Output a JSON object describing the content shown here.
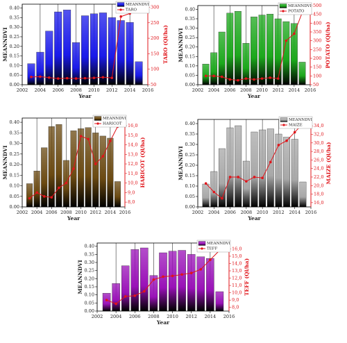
{
  "chart_data": [
    {
      "type": "bar",
      "x": [
        2003,
        2004,
        2005,
        2006,
        2007,
        2008,
        2009,
        2010,
        2011,
        2012,
        2013,
        2014,
        2015
      ],
      "xlabel": "Year",
      "ylabel": "MEANNDVI",
      "y2label": "TARO (Ql/ha)",
      "series": [
        {
          "name": "MEANNDVI",
          "color": "#1a1aea",
          "values": [
            0.11,
            0.17,
            0.28,
            0.38,
            0.39,
            0.22,
            0.36,
            0.37,
            0.375,
            0.35,
            0.335,
            0.325,
            0.12
          ]
        },
        {
          "name": "TARO",
          "color": "#e0141a",
          "axis": "y2",
          "values": [
            75,
            76,
            73,
            70,
            71,
            70,
            71,
            72,
            74,
            72,
            270,
            280,
            295
          ]
        }
      ],
      "xlim": [
        2002,
        2016
      ],
      "xticks": [
        2002,
        2004,
        2006,
        2008,
        2010,
        2012,
        2014,
        2016
      ],
      "ylim": [
        0,
        0.42
      ],
      "yticks": [
        {
          "value": 0,
          "label": "0.00"
        },
        {
          "value": 0.05,
          "label": "0.05"
        },
        {
          "value": 0.1,
          "label": "0.10"
        },
        {
          "value": 0.15,
          "label": "0.15"
        },
        {
          "value": 0.2,
          "label": "0.20"
        },
        {
          "value": 0.25,
          "label": "0.25"
        },
        {
          "value": 0.3,
          "label": "0.30"
        },
        {
          "value": 0.35,
          "label": "0.35"
        },
        {
          "value": 0.4,
          "label": "0.40"
        }
      ],
      "y2lim": [
        50,
        310
      ],
      "y2ticks": [
        50,
        100,
        150,
        200,
        250,
        300
      ],
      "grid": "x"
    },
    {
      "type": "bar",
      "x": [
        2003,
        2004,
        2005,
        2006,
        2007,
        2008,
        2009,
        2010,
        2011,
        2012,
        2013,
        2014,
        2015
      ],
      "xlabel": "Year",
      "ylabel": "MEANNDVI",
      "y2label": "POTATO (Ql/ha)",
      "series": [
        {
          "name": "MEANNDVI",
          "color": "#1ca81c",
          "values": [
            0.11,
            0.17,
            0.28,
            0.38,
            0.39,
            0.22,
            0.36,
            0.37,
            0.375,
            0.35,
            0.335,
            0.325,
            0.12
          ]
        },
        {
          "name": "POTATO",
          "color": "#e0141a",
          "axis": "y2",
          "values": [
            100,
            100,
            95,
            80,
            75,
            85,
            80,
            85,
            90,
            85,
            300,
            340,
            460
          ]
        }
      ],
      "xlim": [
        2002,
        2016
      ],
      "xticks": [
        2002,
        2004,
        2006,
        2008,
        2010,
        2012,
        2014,
        2016
      ],
      "ylim": [
        0,
        0.42
      ],
      "yticks": [
        {
          "value": 0,
          "label": "0.00"
        },
        {
          "value": 0.05,
          "label": "0.05"
        },
        {
          "value": 0.1,
          "label": "0.10"
        },
        {
          "value": 0.15,
          "label": "0.15"
        },
        {
          "value": 0.2,
          "label": "0.20"
        },
        {
          "value": 0.25,
          "label": "0.25"
        },
        {
          "value": 0.3,
          "label": "0.30"
        },
        {
          "value": 0.35,
          "label": "0.35"
        },
        {
          "value": 0.4,
          "label": "0.40"
        }
      ],
      "y2lim": [
        50,
        500
      ],
      "y2ticks": [
        50,
        100,
        150,
        200,
        250,
        300,
        350,
        400,
        450,
        500
      ],
      "grid": "x"
    },
    {
      "type": "bar",
      "x": [
        2003,
        2004,
        2005,
        2006,
        2007,
        2008,
        2009,
        2010,
        2011,
        2012,
        2013,
        2014,
        2015
      ],
      "xlabel": "Year",
      "ylabel": "MEANNDVI",
      "y2label": "HARICOT (Ql/ha)",
      "series": [
        {
          "name": "MEANNDVI",
          "color": "#6b4a12",
          "values": [
            0.11,
            0.17,
            0.28,
            0.38,
            0.39,
            0.22,
            0.36,
            0.37,
            0.375,
            0.35,
            0.335,
            0.325,
            0.12
          ]
        },
        {
          "name": "HARICOT",
          "color": "#e0141a",
          "axis": "y2",
          "values": [
            8.4,
            9.0,
            8.6,
            8.5,
            9.5,
            10.0,
            11.5,
            14.9,
            14.6,
            12.0,
            12.8,
            14.4,
            15.9
          ]
        }
      ],
      "xlim": [
        2002,
        2016
      ],
      "xticks": [
        2002,
        2004,
        2006,
        2008,
        2010,
        2012,
        2014,
        2016
      ],
      "ylim": [
        0,
        0.42
      ],
      "yticks": [
        {
          "value": 0,
          "label": "0.00"
        },
        {
          "value": 0.05,
          "label": "0.05"
        },
        {
          "value": 0.1,
          "label": "0.10"
        },
        {
          "value": 0.15,
          "label": "0.15"
        },
        {
          "value": 0.2,
          "label": "0.20"
        },
        {
          "value": 0.25,
          "label": "0.25"
        },
        {
          "value": 0.3,
          "label": "0.30"
        },
        {
          "value": 0.35,
          "label": "0.35"
        },
        {
          "value": 0.4,
          "label": "0.40"
        }
      ],
      "y2lim": [
        7.5,
        16.8
      ],
      "y2ticks": [
        {
          "value": 8,
          "label": "8,0"
        },
        {
          "value": 9,
          "label": "9,0"
        },
        {
          "value": 10,
          "label": "10,0"
        },
        {
          "value": 11,
          "label": "11,0"
        },
        {
          "value": 12,
          "label": "12,0"
        },
        {
          "value": 13,
          "label": "13,0"
        },
        {
          "value": 14,
          "label": "14,0"
        },
        {
          "value": 15,
          "label": "15,0"
        },
        {
          "value": 16,
          "label": "16,0"
        }
      ],
      "grid": "x"
    },
    {
      "type": "bar",
      "x": [
        2003,
        2004,
        2005,
        2006,
        2007,
        2008,
        2009,
        2010,
        2011,
        2012,
        2013,
        2014,
        2015
      ],
      "xlabel": "Year",
      "ylabel": "MEANNDVI",
      "y2label": "MAIZE (Ql/ha)",
      "series": [
        {
          "name": "MEANNDVI",
          "color": "#a8a8a8",
          "values": [
            0.11,
            0.17,
            0.28,
            0.38,
            0.39,
            0.22,
            0.36,
            0.37,
            0.375,
            0.35,
            0.335,
            0.325,
            0.12
          ]
        },
        {
          "name": "MAIZE",
          "color": "#e0141a",
          "axis": "y2",
          "values": [
            20.5,
            18.5,
            17.0,
            22.0,
            22.0,
            21.0,
            22.0,
            21.8,
            25.5,
            29.5,
            30.5,
            32.5,
            34.5
          ]
        }
      ],
      "xlim": [
        2002,
        2016
      ],
      "xticks": [
        2002,
        2004,
        2006,
        2008,
        2010,
        2012,
        2014,
        2016
      ],
      "ylim": [
        0,
        0.42
      ],
      "yticks": [
        {
          "value": 0,
          "label": "0.00"
        },
        {
          "value": 0.05,
          "label": "0.05"
        },
        {
          "value": 0.1,
          "label": "0.10"
        },
        {
          "value": 0.15,
          "label": "0.15"
        },
        {
          "value": 0.2,
          "label": "0.20"
        },
        {
          "value": 0.25,
          "label": "0.25"
        },
        {
          "value": 0.3,
          "label": "0.30"
        },
        {
          "value": 0.35,
          "label": "0.35"
        },
        {
          "value": 0.4,
          "label": "0.40"
        }
      ],
      "y2lim": [
        15,
        35.5
      ],
      "y2ticks": [
        {
          "value": 16,
          "label": "16,0"
        },
        {
          "value": 18,
          "label": "18,0"
        },
        {
          "value": 20,
          "label": "20,0"
        },
        {
          "value": 22,
          "label": "22,0"
        },
        {
          "value": 24,
          "label": "24,0"
        },
        {
          "value": 26,
          "label": "26,0"
        },
        {
          "value": 28,
          "label": "28,0"
        },
        {
          "value": 30,
          "label": "30,0"
        },
        {
          "value": 32,
          "label": "32,0"
        },
        {
          "value": 34,
          "label": "34,0"
        }
      ],
      "grid": "x"
    },
    {
      "type": "bar",
      "x": [
        2003,
        2004,
        2005,
        2006,
        2007,
        2008,
        2009,
        2010,
        2011,
        2012,
        2013,
        2014,
        2015
      ],
      "xlabel": "Year",
      "ylabel": "MEANNDVI",
      "y2label": "TEFF (Ql/ha)",
      "series": [
        {
          "name": "MEANNDVI",
          "color": "#9a12b8",
          "values": [
            0.11,
            0.17,
            0.28,
            0.38,
            0.39,
            0.22,
            0.36,
            0.37,
            0.375,
            0.35,
            0.335,
            0.325,
            0.12
          ]
        },
        {
          "name": "TEFF",
          "color": "#e0141a",
          "axis": "y2",
          "values": [
            9.0,
            8.5,
            9.5,
            9.6,
            10.2,
            11.8,
            12.2,
            12.3,
            12.5,
            12.7,
            13.2,
            14.5,
            15.8
          ]
        }
      ],
      "xlim": [
        2002,
        2016
      ],
      "xticks": [
        2002,
        2004,
        2006,
        2008,
        2010,
        2012,
        2014,
        2016
      ],
      "ylim": [
        0,
        0.42
      ],
      "yticks": [
        {
          "value": 0,
          "label": "0.00"
        },
        {
          "value": 0.05,
          "label": "0.05"
        },
        {
          "value": 0.1,
          "label": "0.10"
        },
        {
          "value": 0.15,
          "label": "0.15"
        },
        {
          "value": 0.2,
          "label": "0.20"
        },
        {
          "value": 0.25,
          "label": "0.25"
        },
        {
          "value": 0.3,
          "label": "0.30"
        },
        {
          "value": 0.35,
          "label": "0.35"
        },
        {
          "value": 0.4,
          "label": "0.40"
        }
      ],
      "y2lim": [
        7.5,
        16.8
      ],
      "y2ticks": [
        {
          "value": 8,
          "label": "8,0"
        },
        {
          "value": 9,
          "label": "9,0"
        },
        {
          "value": 10,
          "label": "10,0"
        },
        {
          "value": 11,
          "label": "11,0"
        },
        {
          "value": 12,
          "label": "12,0"
        },
        {
          "value": 13,
          "label": "13,0"
        },
        {
          "value": 14,
          "label": "14,0"
        },
        {
          "value": 15,
          "label": "15,0"
        },
        {
          "value": 16,
          "label": "16,0"
        }
      ],
      "grid": "x"
    }
  ]
}
